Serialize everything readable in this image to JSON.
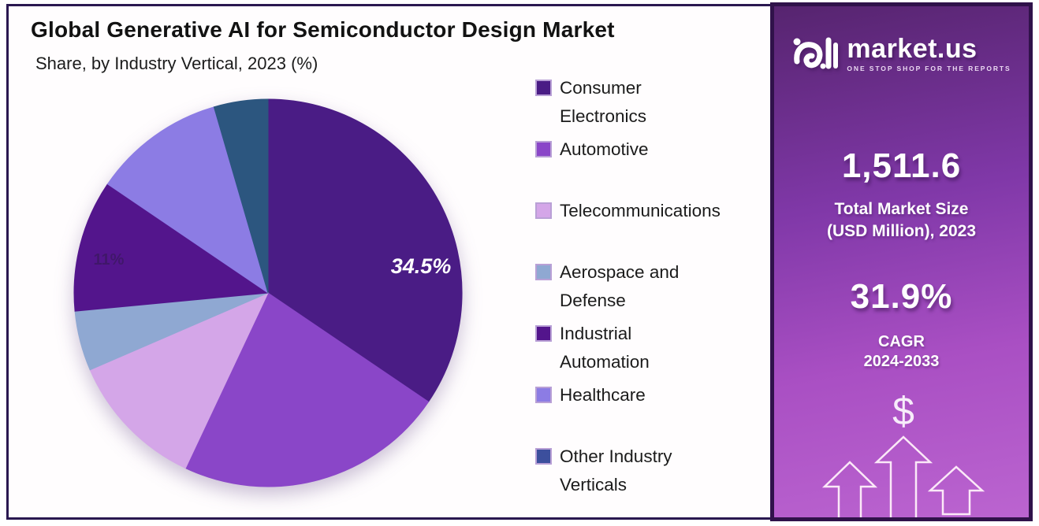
{
  "chart": {
    "title": "Global Generative AI for Semiconductor Design Market",
    "subtitle": "Share, by Industry Vertical, 2023 (%)"
  },
  "chart_data": {
    "type": "pie",
    "unit": "%",
    "title": "Global Generative AI for Semiconductor Design Market Share, by Industry Vertical, 2023 (%)",
    "start_angle_deg": 0,
    "direction": "clockwise",
    "legend_position": "right",
    "slices": [
      {
        "label": "Consumer Electronics",
        "value": 34.5,
        "color": "#4A1C85",
        "data_label": {
          "text": "34.5%",
          "color": "#FFFFFF",
          "italic": true,
          "angle_deg": 80,
          "r_frac": 0.8,
          "font_px": 27,
          "opacity": 1
        }
      },
      {
        "label": "Automotive",
        "value": 22.5,
        "color": "#8A46C8"
      },
      {
        "label": "Telecommunications",
        "value": 11.5,
        "color": "#D4A6E8"
      },
      {
        "label": "Aerospace and Defense",
        "value": 5.0,
        "color": "#8FA8D2"
      },
      {
        "label": "Industrial Automation",
        "value": 11.0,
        "color": "#53158C",
        "data_label": {
          "text": "11%",
          "color": "#2E1A4A",
          "italic": false,
          "angle_deg": 282,
          "r_frac": 0.84,
          "font_px": 20,
          "opacity": 0.5
        }
      },
      {
        "label": "Healthcare",
        "value": 11.0,
        "color": "#8C7CE4"
      },
      {
        "label": "Other Industry Verticals",
        "value": 4.5,
        "color": "#2C567F",
        "swatch_color": "#3C4F9D"
      }
    ]
  },
  "panel": {
    "brand_name": "market.us",
    "brand_tagline": "ONE STOP SHOP FOR THE REPORTS",
    "market_size_value": "1,511.6",
    "market_size_label_line1": "Total Market Size",
    "market_size_label_line2": "(USD Million), 2023",
    "cagr_value": "31.9%",
    "cagr_label_line1": "CAGR",
    "cagr_label_line2": "2024-2033",
    "dollar_symbol": "$",
    "colors": {
      "gradient_top": "#56246F",
      "gradient_mid1": "#8038A8",
      "gradient_mid2": "#A94FC3",
      "gradient_bottom": "#BB64D0",
      "border": "#30124A"
    }
  }
}
